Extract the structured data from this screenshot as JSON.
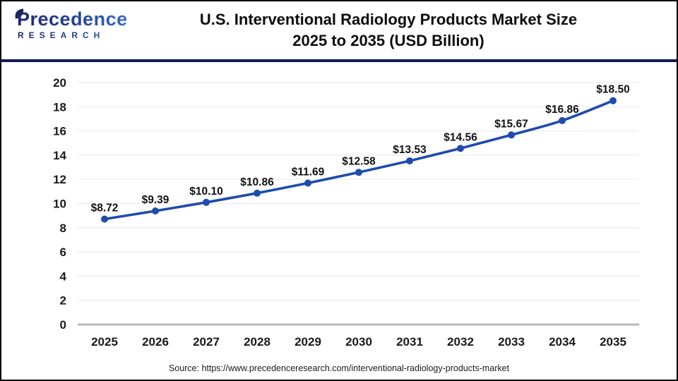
{
  "header": {
    "title_line1": "U.S. Interventional Radiology Products Market Size",
    "title_line2": "2025 to 2035 (USD Billion)"
  },
  "logo": {
    "name": "Precedence",
    "subname": "RESEARCH"
  },
  "footer": {
    "source": "Source: https://www.precedenceresearch.com/interventional-radiology-products-market"
  },
  "colors": {
    "line": "#1e4bad",
    "marker": "#1e4bad",
    "grid": "#ececec",
    "zero_axis": "#b8b8b8",
    "header_rule": "#121c4e",
    "title_text": "#0d0d0d",
    "axis_text": "#1a1a1a",
    "label_text": "#111111",
    "logo_navy": "#1c2663",
    "logo_blue": "#3e7bd6",
    "page_border": "#000000"
  },
  "chart_data": {
    "type": "line",
    "title": "U.S. Interventional Radiology Products Market Size 2025 to 2035 (USD Billion)",
    "x": [
      2025,
      2026,
      2027,
      2028,
      2029,
      2030,
      2031,
      2032,
      2033,
      2034,
      2035
    ],
    "values": [
      8.72,
      9.39,
      10.1,
      10.86,
      11.69,
      12.58,
      13.53,
      14.56,
      15.67,
      16.86,
      18.5
    ],
    "point_labels": [
      "$8.72",
      "$9.39",
      "$10.10",
      "$10.86",
      "$11.69",
      "$12.58",
      "$13.53",
      "$14.56",
      "$15.67",
      "$16.86",
      "$18.50"
    ],
    "ylim": [
      0,
      20
    ],
    "ytick_step": 2,
    "xlabel": "",
    "ylabel": "",
    "grid": "horizontal",
    "legend": "none"
  }
}
